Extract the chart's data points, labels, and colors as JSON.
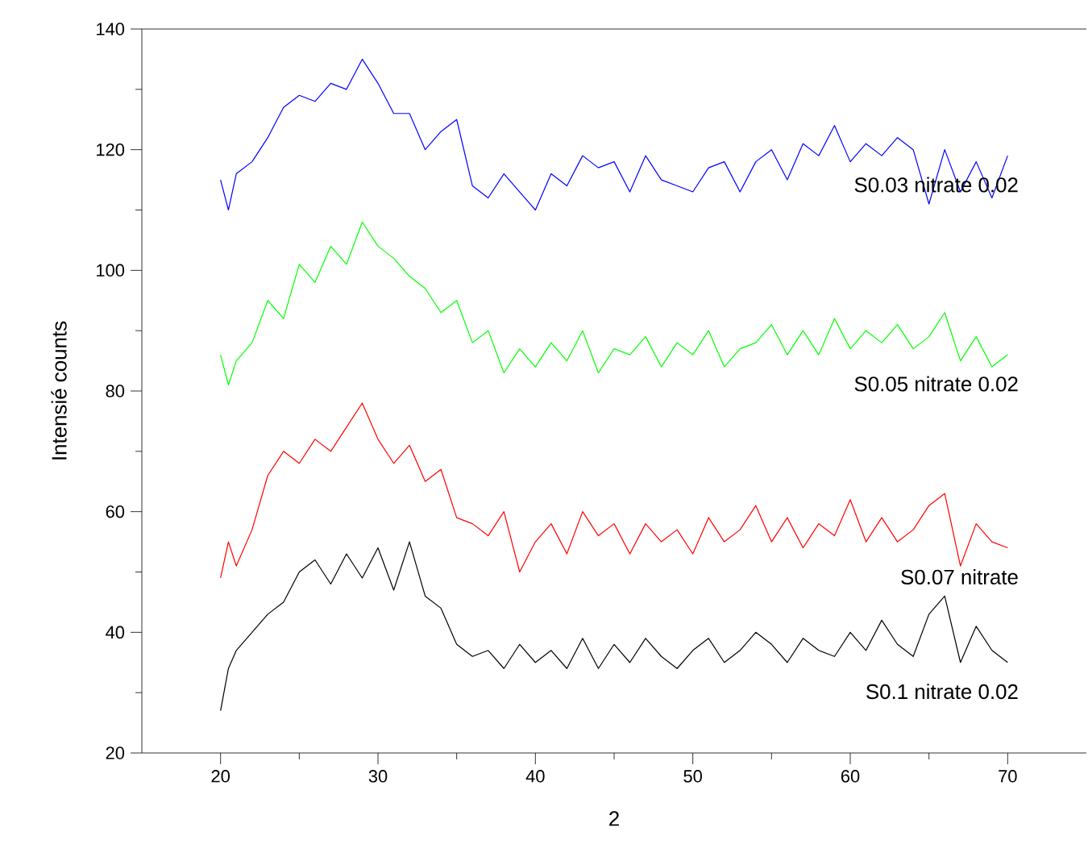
{
  "chart_data": {
    "type": "line",
    "xlabel": "2",
    "ylabel": "Intensié counts",
    "xlim": [
      15,
      75
    ],
    "ylim": [
      20,
      140
    ],
    "xticks": [
      20,
      {
        "value": 25,
        "label": null
      },
      30,
      {
        "value": 35,
        "label": null
      },
      40,
      {
        "value": 45,
        "label": null
      },
      50,
      {
        "value": 55,
        "label": null
      },
      60,
      {
        "value": 65,
        "label": null
      },
      70
    ],
    "yticks": [
      20,
      {
        "value": 30,
        "label": null
      },
      40,
      {
        "value": 50,
        "label": null
      },
      60,
      {
        "value": 70,
        "label": null
      },
      80,
      {
        "value": 90,
        "label": null
      },
      100,
      {
        "value": 110,
        "label": null
      },
      120,
      {
        "value": 130,
        "label": null
      },
      140
    ],
    "legend": false,
    "x": [
      20,
      20.5,
      21,
      22,
      23,
      24,
      25,
      26,
      27,
      28,
      29,
      30,
      31,
      32,
      33,
      34,
      35,
      36,
      37,
      38,
      39,
      40,
      41,
      42,
      43,
      44,
      45,
      46,
      47,
      48,
      49,
      50,
      51,
      52,
      53,
      54,
      55,
      56,
      57,
      58,
      59,
      60,
      61,
      62,
      63,
      64,
      65,
      66,
      67,
      68,
      69,
      70
    ],
    "series": [
      {
        "name": "S0.03 nitrate 0.02",
        "color": "#0000ff",
        "values": [
          115,
          110,
          116,
          118,
          122,
          127,
          129,
          128,
          131,
          130,
          135,
          131,
          126,
          126,
          120,
          123,
          125,
          114,
          112,
          116,
          113,
          110,
          116,
          114,
          119,
          117,
          118,
          113,
          119,
          115,
          114,
          113,
          117,
          118,
          113,
          118,
          120,
          115,
          121,
          119,
          124,
          118,
          121,
          119,
          122,
          120,
          111,
          120,
          113,
          118,
          112,
          119
        ]
      },
      {
        "name": "S0.05 nitrate 0.02",
        "color": "#00ff00",
        "values": [
          86,
          81,
          85,
          88,
          95,
          92,
          101,
          98,
          104,
          101,
          108,
          104,
          102,
          99,
          97,
          93,
          95,
          88,
          90,
          83,
          87,
          84,
          88,
          85,
          90,
          83,
          87,
          86,
          89,
          84,
          88,
          86,
          90,
          84,
          87,
          88,
          91,
          86,
          90,
          86,
          92,
          87,
          90,
          88,
          91,
          87,
          89,
          93,
          85,
          89,
          84,
          86
        ]
      },
      {
        "name": "S0.07 nitrate",
        "color": "#ff0000",
        "values": [
          49,
          55,
          51,
          57,
          66,
          70,
          68,
          72,
          70,
          74,
          78,
          72,
          68,
          71,
          65,
          67,
          59,
          58,
          56,
          60,
          50,
          55,
          58,
          53,
          60,
          56,
          58,
          53,
          58,
          55,
          57,
          53,
          59,
          55,
          57,
          61,
          55,
          59,
          54,
          58,
          56,
          62,
          55,
          59,
          55,
          57,
          61,
          63,
          51,
          58,
          55,
          54
        ]
      },
      {
        "name": "S0.1 nitrate 0.02",
        "color": "#000000",
        "values": [
          27,
          34,
          37,
          40,
          43,
          45,
          50,
          52,
          48,
          53,
          49,
          54,
          47,
          55,
          46,
          44,
          38,
          36,
          37,
          34,
          38,
          35,
          37,
          34,
          39,
          34,
          38,
          35,
          39,
          36,
          34,
          37,
          39,
          35,
          37,
          40,
          38,
          35,
          39,
          37,
          36,
          40,
          37,
          42,
          38,
          36,
          43,
          46,
          35,
          41,
          37,
          35
        ]
      }
    ]
  }
}
